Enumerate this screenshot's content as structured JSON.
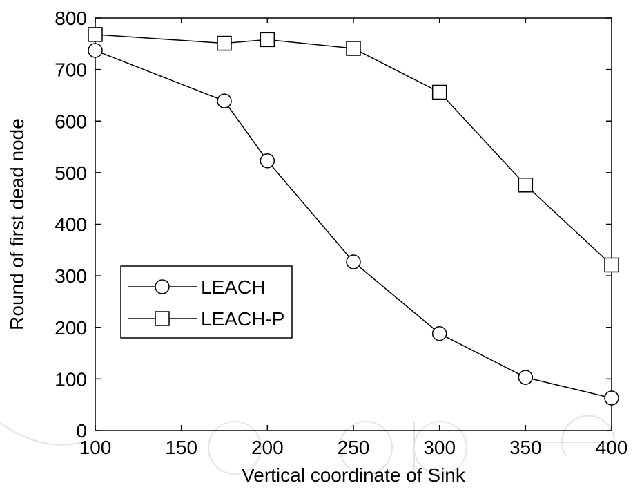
{
  "chart_data": {
    "type": "line",
    "title": "",
    "xlabel": "Vertical coordinate of Sink",
    "ylabel": "Round of first dead node",
    "xlim": [
      100,
      400
    ],
    "ylim": [
      0,
      800
    ],
    "xticks": [
      100,
      150,
      200,
      250,
      300,
      350,
      400
    ],
    "yticks": [
      0,
      100,
      200,
      300,
      400,
      500,
      600,
      700,
      800
    ],
    "grid": false,
    "legend_position": "center-left",
    "series": [
      {
        "name": "LEACH",
        "marker": "circle",
        "color": "#000000",
        "points": [
          {
            "x": 100,
            "y": 737
          },
          {
            "x": 175,
            "y": 639
          },
          {
            "x": 200,
            "y": 523
          },
          {
            "x": 250,
            "y": 327
          },
          {
            "x": 300,
            "y": 188
          },
          {
            "x": 350,
            "y": 103
          },
          {
            "x": 400,
            "y": 63
          }
        ]
      },
      {
        "name": "LEACH-P",
        "marker": "square",
        "color": "#000000",
        "points": [
          {
            "x": 100,
            "y": 768
          },
          {
            "x": 175,
            "y": 751
          },
          {
            "x": 200,
            "y": 758
          },
          {
            "x": 250,
            "y": 741
          },
          {
            "x": 300,
            "y": 656
          },
          {
            "x": 350,
            "y": 476
          },
          {
            "x": 400,
            "y": 321
          }
        ]
      }
    ]
  }
}
